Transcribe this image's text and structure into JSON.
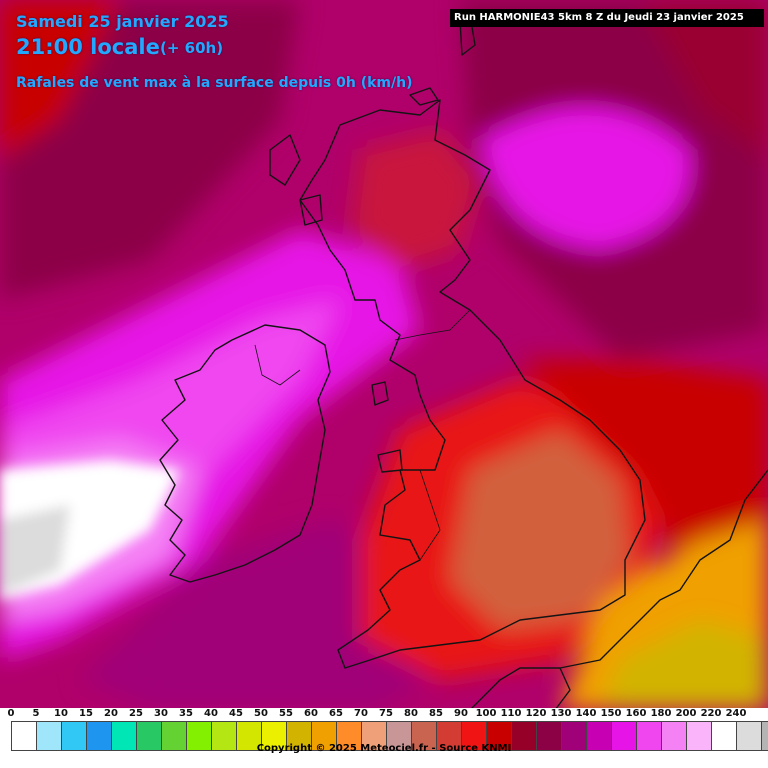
{
  "header": {
    "date": "Samedi 25 janvier 2025",
    "time": "21:00 locale",
    "lead": "(+ 60h)",
    "parameter": "Rafales de vent max à la surface depuis 0h (km/h)"
  },
  "run_info": "Run HARMONIE43 5km 8 Z du Jeudi 23 janvier 2025",
  "legend": {
    "labels": [
      "0",
      "5",
      "10",
      "15",
      "20",
      "25",
      "30",
      "35",
      "40",
      "45",
      "50",
      "55",
      "60",
      "65",
      "70",
      "75",
      "80",
      "85",
      "90",
      "100",
      "110",
      "120",
      "130",
      "140",
      "150",
      "160",
      "180",
      "200",
      "220",
      "240"
    ],
    "colors": [
      "#ffffff",
      "#a0e6fa",
      "#32c8f5",
      "#1e96f0",
      "#00e6b4",
      "#28c864",
      "#64d232",
      "#82f000",
      "#b4e614",
      "#d2e600",
      "#ebf000",
      "#d2b400",
      "#f0a000",
      "#ff8c28",
      "#f0a078",
      "#c89696",
      "#c86450",
      "#d23c32",
      "#f01414",
      "#c80000",
      "#960028",
      "#8c0046",
      "#a00078",
      "#c800b4",
      "#e614e6",
      "#f046f0",
      "#f582f5",
      "#fab4fa",
      "#ffffff",
      "#dcdcdc",
      "#b4b4b4"
    ]
  },
  "colors": {
    "header_text": "#22a8ff",
    "banner_bg": "#000000",
    "sea_base": "#b4006e",
    "coastline": "#141414"
  },
  "copyright": "Copyright © 2025 Meteociel.fr - Source KNMI"
}
